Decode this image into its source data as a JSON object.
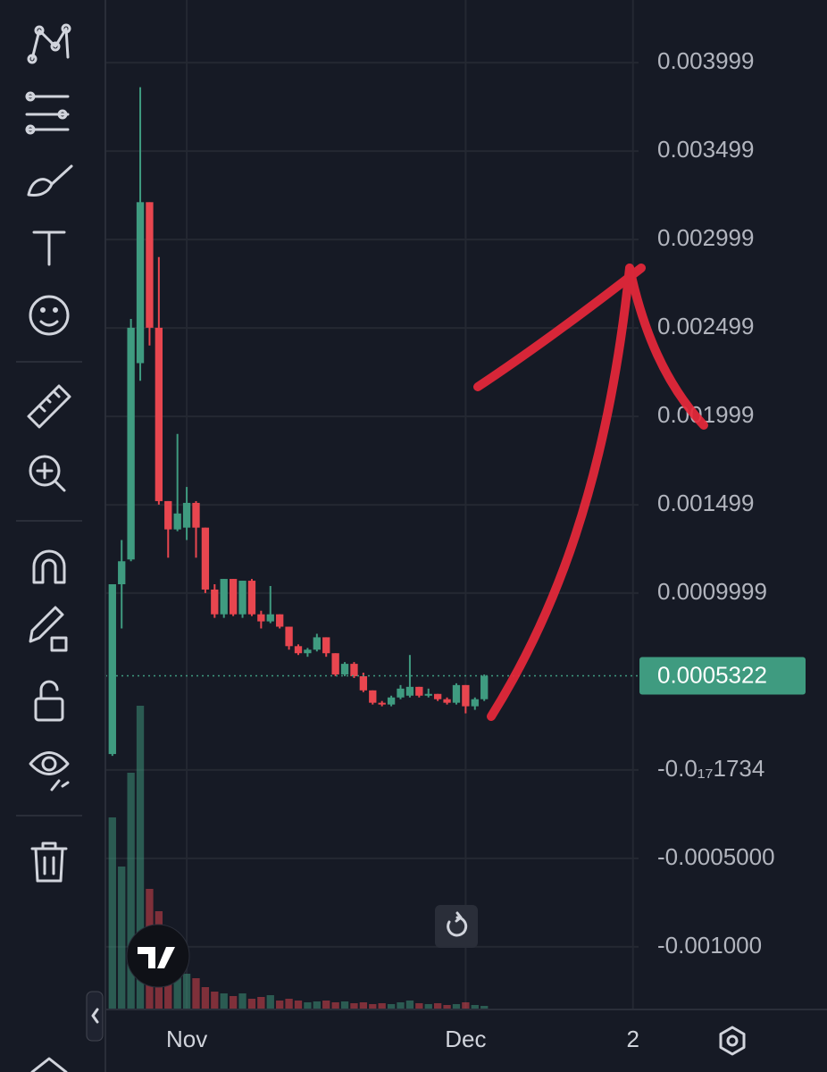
{
  "chart_data": {
    "type": "candlestick",
    "open": [
      9e-05,
      0.00105,
      0.00119,
      0.0023,
      0.00321,
      0.0025,
      0.00152,
      0.00136,
      0.00137,
      0.00151,
      0.00137,
      0.00102,
      0.00088,
      0.00108,
      0.00088,
      0.00107,
      0.00088,
      0.00084,
      0.00088,
      0.00081,
      0.0007,
      0.00066,
      0.00068,
      0.00075,
      0.00066,
      0.00054,
      0.0006,
      0.00053,
      0.00045,
      0.00038,
      0.00037,
      0.00041,
      0.00042,
      0.00047,
      0.00042,
      0.00043,
      0.0004,
      0.00038,
      0.00048,
      0.00036,
      0.0004
    ],
    "high": [
      0.00105,
      0.0013,
      0.00255,
      0.00386,
      0.00321,
      0.0029,
      0.00152,
      0.0019,
      0.0016,
      0.00152,
      0.00137,
      0.00105,
      0.00108,
      0.00108,
      0.00107,
      0.00108,
      0.0009,
      0.00104,
      0.00088,
      0.00081,
      0.00071,
      0.00069,
      0.00077,
      0.00075,
      0.00066,
      0.00061,
      0.00061,
      0.00055,
      0.00045,
      0.00039,
      0.00042,
      0.00048,
      0.00065,
      0.00047,
      0.00046,
      0.00043,
      0.00041,
      0.00049,
      0.00048,
      0.00041,
      0.00054
    ],
    "low": [
      8e-05,
      0.0008,
      0.00118,
      0.0022,
      0.0024,
      0.0015,
      0.0012,
      0.00135,
      0.0013,
      0.0012,
      0.001,
      0.00086,
      0.00086,
      0.00087,
      0.00086,
      0.00087,
      0.0008,
      0.00083,
      0.0008,
      0.00068,
      0.00065,
      0.00064,
      0.00067,
      0.00064,
      0.00053,
      0.00053,
      0.00052,
      0.00044,
      0.00037,
      0.00036,
      0.00036,
      0.0004,
      0.00041,
      0.00041,
      0.00041,
      0.00039,
      0.00037,
      0.00037,
      0.00032,
      0.00034,
      0.00039
    ],
    "close": [
      0.00105,
      0.00118,
      0.0025,
      0.00321,
      0.0025,
      0.00152,
      0.00136,
      0.00145,
      0.00151,
      0.00137,
      0.00102,
      0.00088,
      0.00108,
      0.00088,
      0.00107,
      0.00088,
      0.00084,
      0.00088,
      0.00081,
      0.0007,
      0.00066,
      0.00068,
      0.00075,
      0.00066,
      0.00054,
      0.0006,
      0.00053,
      0.00045,
      0.00038,
      0.00037,
      0.00041,
      0.00046,
      0.00047,
      0.00042,
      0.00043,
      0.0004,
      0.00038,
      0.00048,
      0.00036,
      0.0004,
      0.000532
    ],
    "volume": [
      215,
      160,
      265,
      340,
      135,
      110,
      85,
      60,
      40,
      35,
      25,
      20,
      18,
      15,
      18,
      12,
      14,
      16,
      10,
      12,
      10,
      8,
      9,
      10,
      8,
      9,
      7,
      8,
      6,
      7,
      6,
      8,
      10,
      7,
      6,
      7,
      5,
      6,
      8,
      5,
      4
    ],
    "up_color": "#3f9b80",
    "down_color": "#e8464f",
    "ylim": [
      -0.001354,
      0.004353
    ],
    "yticks": [
      0.003999,
      0.003499,
      0.002999,
      0.002499,
      0.001999,
      0.001499,
      0.0009999,
      {
        "value": -1.734e-18,
        "label": "-0.0₁₇1734"
      },
      {
        "value": -0.0005,
        "label": "-0.0005000"
      },
      {
        "value": -0.001,
        "label": "-0.001000"
      }
    ],
    "xlim": [
      -0.75,
      56.6
    ],
    "xticks": [
      {
        "value": 8,
        "label": "Nov"
      },
      {
        "value": 38,
        "label": "Dec"
      },
      {
        "value": 56,
        "label": "2"
      }
    ],
    "last_price": 0.0005322,
    "grid": true
  }
}
